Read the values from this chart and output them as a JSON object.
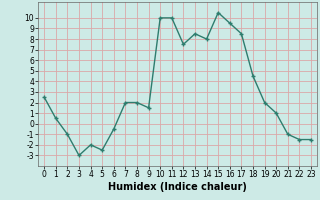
{
  "x": [
    0,
    1,
    2,
    3,
    4,
    5,
    6,
    7,
    8,
    9,
    10,
    11,
    12,
    13,
    14,
    15,
    16,
    17,
    18,
    19,
    20,
    21,
    22,
    23
  ],
  "y": [
    2.5,
    0.5,
    -1,
    -3,
    -2,
    -2.5,
    -0.5,
    2,
    2,
    1.5,
    10,
    10,
    7.5,
    8.5,
    8,
    10.5,
    9.5,
    8.5,
    4.5,
    2,
    1,
    -1,
    -1.5,
    -1.5
  ],
  "line_color": "#2e7d6e",
  "marker": "+",
  "marker_size": 3,
  "bg_color": "#cdeae6",
  "grid_color": "#dba8a8",
  "xlabel": "Humidex (Indice chaleur)",
  "xlabel_fontsize": 7,
  "xlim": [
    -0.5,
    23.5
  ],
  "ylim": [
    -4,
    11.5
  ],
  "yticks": [
    -3,
    -2,
    -1,
    0,
    1,
    2,
    3,
    4,
    5,
    6,
    7,
    8,
    9,
    10
  ],
  "xticks": [
    0,
    1,
    2,
    3,
    4,
    5,
    6,
    7,
    8,
    9,
    10,
    11,
    12,
    13,
    14,
    15,
    16,
    17,
    18,
    19,
    20,
    21,
    22,
    23
  ],
  "tick_fontsize": 5.5,
  "line_width": 1.0
}
